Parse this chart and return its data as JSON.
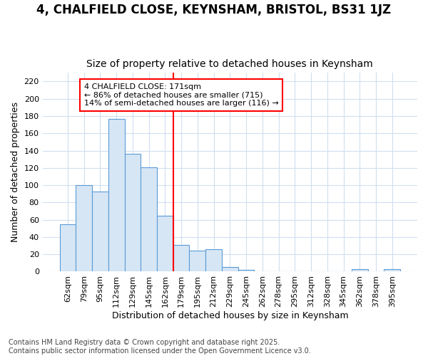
{
  "title": "4, CHALFIELD CLOSE, KEYNSHAM, BRISTOL, BS31 1JZ",
  "subtitle": "Size of property relative to detached houses in Keynsham",
  "xlabel": "Distribution of detached houses by size in Keynsham",
  "ylabel": "Number of detached properties",
  "bin_labels": [
    "62sqm",
    "79sqm",
    "95sqm",
    "112sqm",
    "129sqm",
    "145sqm",
    "162sqm",
    "179sqm",
    "195sqm",
    "212sqm",
    "229sqm",
    "245sqm",
    "262sqm",
    "278sqm",
    "295sqm",
    "312sqm",
    "328sqm",
    "345sqm",
    "362sqm",
    "378sqm",
    "395sqm"
  ],
  "bar_values": [
    55,
    100,
    93,
    177,
    136,
    121,
    65,
    31,
    24,
    26,
    5,
    2,
    0,
    0,
    0,
    0,
    0,
    0,
    3,
    0,
    3
  ],
  "bar_color": "#d6e6f5",
  "bar_edge_color": "#5b9bd5",
  "vline_index": 7,
  "annotation_line1": "4 CHALFIELD CLOSE: 171sqm",
  "annotation_line2": "← 86% of detached houses are smaller (715)",
  "annotation_line3": "14% of semi-detached houses are larger (116) →",
  "annotation_box_facecolor": "white",
  "annotation_box_edgecolor": "red",
  "vline_color": "red",
  "ylim": [
    0,
    230
  ],
  "yticks": [
    0,
    20,
    40,
    60,
    80,
    100,
    120,
    140,
    160,
    180,
    200,
    220
  ],
  "background_color": "#ffffff",
  "grid_color": "#d0dff0",
  "title_fontsize": 12,
  "subtitle_fontsize": 10,
  "axis_label_fontsize": 9,
  "tick_fontsize": 8,
  "annotation_fontsize": 8,
  "footer_fontsize": 7,
  "footer_line1": "Contains HM Land Registry data © Crown copyright and database right 2025.",
  "footer_line2": "Contains public sector information licensed under the Open Government Licence v3.0."
}
